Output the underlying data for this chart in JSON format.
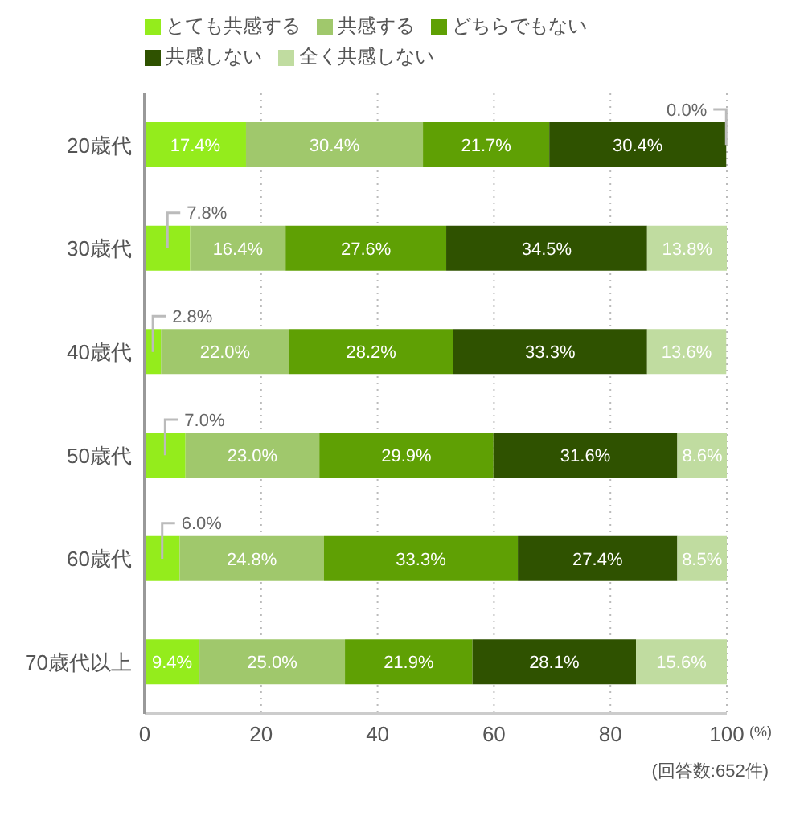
{
  "chart_data": {
    "type": "bar",
    "orientation": "horizontal",
    "stacked": true,
    "categories": [
      "20歳代",
      "30歳代",
      "40歳代",
      "50歳代",
      "60歳代",
      "70歳代以上"
    ],
    "series": [
      {
        "name": "とても共感する",
        "color": "#94ec1c",
        "values": [
          17.4,
          7.8,
          2.8,
          7.0,
          6.0,
          9.4
        ],
        "value_labels": [
          "17.4%",
          "7.8%",
          "2.8%",
          "7.0%",
          "6.0%",
          "9.4%"
        ]
      },
      {
        "name": "共感する",
        "color": "#a0c86c",
        "values": [
          30.4,
          16.4,
          22.0,
          23.0,
          24.8,
          25.0
        ],
        "value_labels": [
          "30.4%",
          "16.4%",
          "22.0%",
          "23.0%",
          "24.8%",
          "25.0%"
        ]
      },
      {
        "name": "どちらでもない",
        "color": "#5fa004",
        "values": [
          21.7,
          27.6,
          28.2,
          29.9,
          33.3,
          21.9
        ],
        "value_labels": [
          "21.7%",
          "27.6%",
          "28.2%",
          "29.9%",
          "33.3%",
          "21.9%"
        ]
      },
      {
        "name": "共感しない",
        "color": "#2f5200",
        "values": [
          30.4,
          34.5,
          33.3,
          31.6,
          27.4,
          28.1
        ],
        "value_labels": [
          "30.4%",
          "34.5%",
          "33.3%",
          "31.6%",
          "27.4%",
          "28.1%"
        ]
      },
      {
        "name": "全く共感しない",
        "color": "#c0dca0",
        "values": [
          0.0,
          13.8,
          13.6,
          8.6,
          8.5,
          15.6
        ],
        "value_labels": [
          "0.0%",
          "13.8%",
          "13.6%",
          "8.6%",
          "8.5%",
          "15.6%"
        ]
      }
    ],
    "xlim": [
      0,
      100
    ],
    "xticks": [
      0,
      20,
      40,
      60,
      80,
      100
    ],
    "xlabel": "(%)",
    "grid": "x",
    "legend": "top left",
    "annotations": [
      "(回答数:652件)"
    ]
  }
}
